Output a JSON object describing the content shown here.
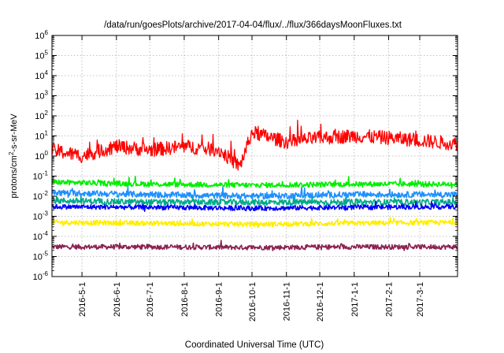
{
  "chart_data": {
    "type": "line",
    "title": "/data/run/goesPlots/archive/2017-04-04/flux/../flux/366daysMoonFluxes.txt",
    "xlabel": "Coordinated Universal Time (UTC)",
    "ylabel": {
      "prefix": "protons/cm",
      "sup": "2",
      "suffix": "-s-sr-MeV"
    },
    "yscale": "log",
    "xlim": [
      "2016-04-04",
      "2017-04-04"
    ],
    "ylim_exp": [
      -6,
      6
    ],
    "grid": true,
    "x_ticks": [
      "2016-5-1",
      "2016-6-1",
      "2016-7-1",
      "2016-8-1",
      "2016-9-1",
      "2016-10-1",
      "2016-11-1",
      "2016-12-1",
      "2017-1-1",
      "2017-2-1",
      "2017-3-1"
    ],
    "y_ticks": [
      {
        "exp": 6,
        "label": "10",
        "sup": "6"
      },
      {
        "exp": 5,
        "label": "10",
        "sup": "5"
      },
      {
        "exp": 4,
        "label": "10",
        "sup": "4"
      },
      {
        "exp": 3,
        "label": "10",
        "sup": "3"
      },
      {
        "exp": 2,
        "label": "10",
        "sup": "2"
      },
      {
        "exp": 1,
        "label": "10",
        "sup": "1"
      },
      {
        "exp": 0,
        "label": "10",
        "sup": "0"
      },
      {
        "exp": -1,
        "label": "10",
        "sup": "-1"
      },
      {
        "exp": -2,
        "label": "10",
        "sup": "-2"
      },
      {
        "exp": -3,
        "label": "10",
        "sup": "-3"
      },
      {
        "exp": -4,
        "label": "10",
        "sup": "-4"
      },
      {
        "exp": -5,
        "label": "10",
        "sup": "-5"
      },
      {
        "exp": -6,
        "label": "10",
        "sup": "-6"
      }
    ],
    "series": [
      {
        "color": "#ff0000",
        "x": [
          "2016-04-04",
          "2016-05-01",
          "2016-06-01",
          "2016-07-01",
          "2016-08-01",
          "2016-09-01",
          "2016-09-20",
          "2016-10-01",
          "2016-11-01",
          "2016-12-01",
          "2017-01-01",
          "2017-02-01",
          "2017-03-01",
          "2017-04-04"
        ],
        "y": [
          2,
          1,
          3,
          2,
          3,
          2,
          0.3,
          15,
          5,
          8,
          10,
          8,
          6,
          4
        ]
      },
      {
        "color": "#00ee00",
        "x": [
          "2016-04-04",
          "2016-07-01",
          "2016-10-01",
          "2017-01-01",
          "2017-04-04"
        ],
        "y": [
          0.05,
          0.04,
          0.035,
          0.04,
          0.04
        ]
      },
      {
        "color": "#1e90ff",
        "x": [
          "2016-04-04",
          "2016-07-01",
          "2016-10-01",
          "2017-01-01",
          "2017-04-04"
        ],
        "y": [
          0.015,
          0.012,
          0.01,
          0.012,
          0.012
        ]
      },
      {
        "color": "#00aa88",
        "x": [
          "2016-04-04",
          "2016-07-01",
          "2016-10-01",
          "2017-01-01",
          "2017-04-04"
        ],
        "y": [
          0.006,
          0.005,
          0.005,
          0.005,
          0.005
        ]
      },
      {
        "color": "#0000ff",
        "x": [
          "2016-04-04",
          "2016-07-01",
          "2016-10-01",
          "2017-01-01",
          "2017-04-04"
        ],
        "y": [
          0.003,
          0.0028,
          0.0025,
          0.0028,
          0.003
        ]
      },
      {
        "color": "#ffee00",
        "x": [
          "2016-04-04",
          "2016-07-01",
          "2016-10-01",
          "2017-01-01",
          "2017-04-04"
        ],
        "y": [
          0.0005,
          0.00045,
          0.0004,
          0.00045,
          0.0005
        ]
      },
      {
        "color": "#8b2252",
        "x": [
          "2016-04-04",
          "2016-07-01",
          "2016-10-01",
          "2017-01-01",
          "2017-04-04"
        ],
        "y": [
          3e-05,
          3e-05,
          2.8e-05,
          3e-05,
          3e-05
        ]
      }
    ]
  }
}
